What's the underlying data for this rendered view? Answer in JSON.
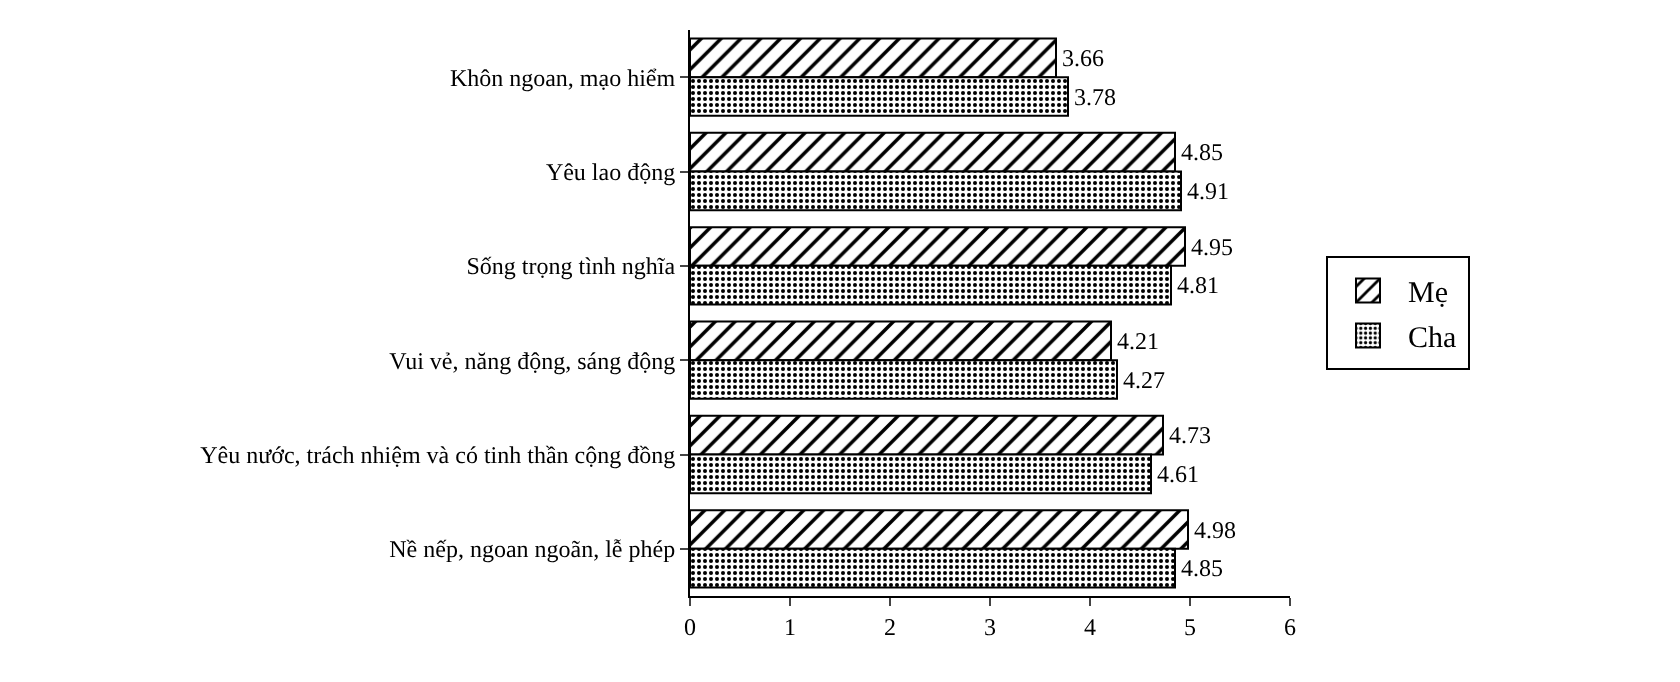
{
  "chart_data": {
    "type": "bar",
    "orientation": "horizontal",
    "categories": [
      "Khôn ngoan, mạo hiểm",
      "Yêu lao động",
      "Sống trọng tình nghĩa",
      "Vui vẻ, năng động, sáng động",
      "Yêu nước, trách nhiệm và có tinh thần cộng đồng",
      "Nề nếp, ngoan ngoãn, lễ phép"
    ],
    "series": [
      {
        "name": "Mẹ",
        "color": "#000000",
        "values": [
          3.66,
          4.85,
          4.95,
          4.21,
          4.73,
          4.98
        ]
      },
      {
        "name": "Cha",
        "color": "#000000",
        "values": [
          3.78,
          4.91,
          4.81,
          4.27,
          4.61,
          4.85
        ]
      }
    ],
    "xlim": [
      0,
      6
    ],
    "xticks": [
      0,
      1,
      2,
      3,
      4,
      5,
      6
    ],
    "grid": false,
    "legend": "right",
    "data_labels": true
  }
}
